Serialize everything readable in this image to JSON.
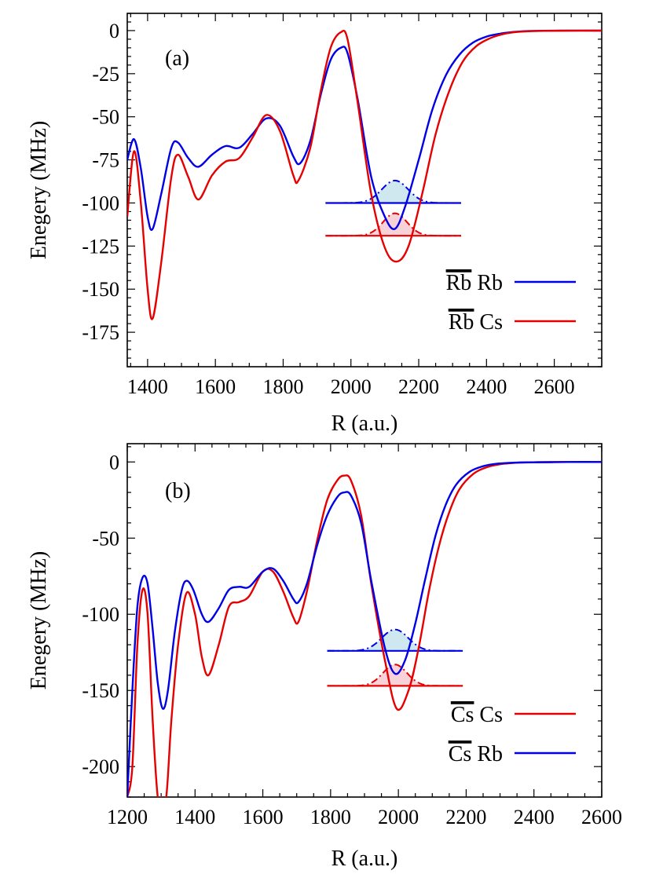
{
  "chart_data": [
    {
      "type": "line",
      "panel_label": "(a)",
      "xlabel": "R (a.u.)",
      "ylabel": "Enegery (MHz)",
      "xlim": [
        1340,
        2740
      ],
      "ylim": [
        -195,
        10
      ],
      "xticks": [
        1400,
        1600,
        1800,
        2000,
        2200,
        2400,
        2600
      ],
      "xtick_labels": [
        "1400",
        "1600",
        "1800",
        "2000",
        "2200",
        "2400",
        "2600"
      ],
      "yticks": [
        0,
        -25,
        -50,
        -75,
        -100,
        -125,
        -150,
        -175
      ],
      "ytick_labels": [
        "0",
        "-25",
        "-50",
        "-75",
        "-100",
        "-125",
        "-150",
        "-175"
      ],
      "series": [
        {
          "name_bar": "Rb",
          "name_rest": " Rb",
          "color": "#0000e6",
          "x": [
            1340,
            1360,
            1380,
            1400,
            1415,
            1440,
            1470,
            1490,
            1520,
            1550,
            1590,
            1630,
            1670,
            1710,
            1750,
            1790,
            1830,
            1850,
            1880,
            1910,
            1940,
            1970,
            1990,
            2020,
            2060,
            2100,
            2130,
            2160,
            2200,
            2240,
            2280,
            2320,
            2360,
            2400,
            2440,
            2480,
            2520,
            2560,
            2620,
            2740
          ],
          "y": [
            -75,
            -63,
            -80,
            -108,
            -115,
            -95,
            -68,
            -65,
            -74,
            -79,
            -72,
            -67,
            -68,
            -60,
            -51,
            -55,
            -73,
            -77,
            -64,
            -38,
            -17,
            -10,
            -13,
            -40,
            -85,
            -108,
            -115,
            -102,
            -75,
            -46,
            -26,
            -14,
            -7,
            -3.5,
            -1.8,
            -0.8,
            -0.3,
            -0.1,
            0,
            0
          ]
        },
        {
          "name_bar": "Rb",
          "name_rest": " Cs",
          "color": "#e60000",
          "x": [
            1340,
            1360,
            1380,
            1400,
            1415,
            1440,
            1470,
            1490,
            1520,
            1550,
            1590,
            1630,
            1670,
            1710,
            1750,
            1790,
            1830,
            1845,
            1880,
            1910,
            1940,
            1970,
            1990,
            2020,
            2060,
            2100,
            2135,
            2170,
            2210,
            2250,
            2290,
            2330,
            2370,
            2410,
            2450,
            2490,
            2540,
            2600,
            2740
          ],
          "y": [
            -108,
            -70,
            -100,
            -150,
            -167,
            -135,
            -85,
            -72,
            -85,
            -98,
            -84,
            -76,
            -74,
            -62,
            -49,
            -58,
            -84,
            -87,
            -68,
            -36,
            -10,
            -1,
            -5,
            -42,
            -95,
            -126,
            -134,
            -125,
            -95,
            -60,
            -35,
            -18,
            -9,
            -4.5,
            -2,
            -0.8,
            -0.3,
            -0.1,
            0
          ]
        }
      ],
      "levels": [
        {
          "color": "#0000e6",
          "fill": "#cfe8f0",
          "energy": -100,
          "x_start": 1925,
          "x_end": 2325,
          "center": 2130,
          "width": 55,
          "amplitude": 13
        },
        {
          "color": "#e60000",
          "fill": "#f7d2d8",
          "energy": -119,
          "x_start": 1925,
          "x_end": 2325,
          "center": 2130,
          "width": 50,
          "amplitude": 13
        }
      ]
    },
    {
      "type": "line",
      "panel_label": "(b)",
      "xlabel": "R (a.u.)",
      "ylabel": "Enegery (MHz)",
      "xlim": [
        1200,
        2600
      ],
      "ylim": [
        -220,
        12
      ],
      "xticks": [
        1200,
        1400,
        1600,
        1800,
        2000,
        2200,
        2400,
        2600
      ],
      "xtick_labels": [
        "1200",
        "1400",
        "1600",
        "1800",
        "2000",
        "2200",
        "2400",
        "2600"
      ],
      "yticks": [
        0,
        -50,
        -100,
        -150,
        -200
      ],
      "ytick_labels": [
        "0",
        "-50",
        "-100",
        "-150",
        "-200"
      ],
      "series": [
        {
          "name_bar": "Cs",
          "name_rest": " Cs",
          "color": "#e60000",
          "x": [
            1200,
            1215,
            1230,
            1245,
            1260,
            1275,
            1290,
            1300,
            1315,
            1330,
            1350,
            1375,
            1400,
            1420,
            1440,
            1470,
            1500,
            1530,
            1560,
            1600,
            1630,
            1660,
            1690,
            1705,
            1730,
            1760,
            1790,
            1820,
            1840,
            1860,
            1890,
            1920,
            1960,
            1995,
            2030,
            2060,
            2090,
            2120,
            2150,
            2180,
            2220,
            2260,
            2300,
            2350,
            2400,
            2450,
            2500,
            2600
          ],
          "y": [
            -220,
            -200,
            -120,
            -84,
            -100,
            -170,
            -220,
            -220,
            -220,
            -170,
            -120,
            -86,
            -100,
            -128,
            -140,
            -120,
            -95,
            -92,
            -88,
            -72,
            -72,
            -85,
            -102,
            -105,
            -85,
            -52,
            -25,
            -12,
            -9,
            -12,
            -35,
            -80,
            -130,
            -162,
            -150,
            -122,
            -85,
            -55,
            -33,
            -18,
            -8,
            -3.5,
            -1.5,
            -0.5,
            -0.2,
            -0.1,
            0,
            0
          ]
        },
        {
          "name_bar": "Cs",
          "name_rest": " Rb",
          "color": "#0000e6",
          "x": [
            1200,
            1215,
            1230,
            1245,
            1260,
            1275,
            1290,
            1305,
            1320,
            1340,
            1360,
            1375,
            1395,
            1420,
            1440,
            1470,
            1500,
            1530,
            1560,
            1600,
            1630,
            1660,
            1690,
            1705,
            1730,
            1760,
            1790,
            1820,
            1840,
            1860,
            1890,
            1920,
            1960,
            1990,
            2020,
            2050,
            2080,
            2110,
            2140,
            2170,
            2210,
            2250,
            2290,
            2340,
            2400,
            2450,
            2500,
            2600
          ],
          "y": [
            -220,
            -150,
            -95,
            -76,
            -80,
            -110,
            -145,
            -162,
            -150,
            -112,
            -85,
            -78,
            -84,
            -100,
            -105,
            -96,
            -84,
            -82,
            -82,
            -72,
            -70,
            -78,
            -90,
            -92,
            -80,
            -55,
            -35,
            -23,
            -20,
            -22,
            -40,
            -78,
            -122,
            -139,
            -130,
            -106,
            -76,
            -48,
            -28,
            -15,
            -6.5,
            -2.8,
            -1.2,
            -0.5,
            -0.2,
            -0.1,
            0,
            0
          ]
        }
      ],
      "levels": [
        {
          "color": "#0000e6",
          "fill": "#cfe8f0",
          "energy": -124,
          "x_start": 1790,
          "x_end": 2190,
          "center": 1990,
          "width": 55,
          "amplitude": 14
        },
        {
          "color": "#e60000",
          "fill": "#f7d2d8",
          "energy": -147,
          "x_start": 1790,
          "x_end": 2190,
          "center": 1990,
          "width": 50,
          "amplitude": 14
        }
      ]
    }
  ]
}
